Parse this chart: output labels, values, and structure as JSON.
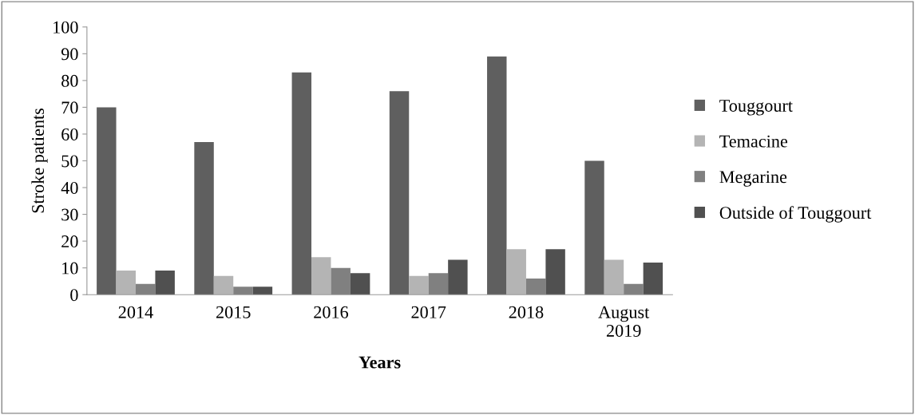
{
  "chart_data": {
    "type": "bar",
    "xlabel": "Years",
    "ylabel": "Stroke patients",
    "categories": [
      "2014",
      "2015",
      "2016",
      "2017",
      "2018",
      "August\n2019"
    ],
    "series": [
      {
        "name": "Touggourt",
        "color": "#5f5f5f",
        "values": [
          70,
          57,
          83,
          76,
          89,
          50
        ]
      },
      {
        "name": "Temacine",
        "color": "#b4b4b4",
        "values": [
          9,
          7,
          14,
          7,
          17,
          13
        ]
      },
      {
        "name": "Megarine",
        "color": "#808080",
        "values": [
          4,
          3,
          10,
          8,
          6,
          4
        ]
      },
      {
        "name": "Outside of Touggourt",
        "color": "#505050",
        "values": [
          9,
          3,
          8,
          13,
          17,
          12
        ]
      }
    ],
    "ylim": [
      0,
      100
    ],
    "yticks": [
      0,
      10,
      20,
      30,
      40,
      50,
      60,
      70,
      80,
      90,
      100
    ],
    "grid": false,
    "legend": "right"
  }
}
